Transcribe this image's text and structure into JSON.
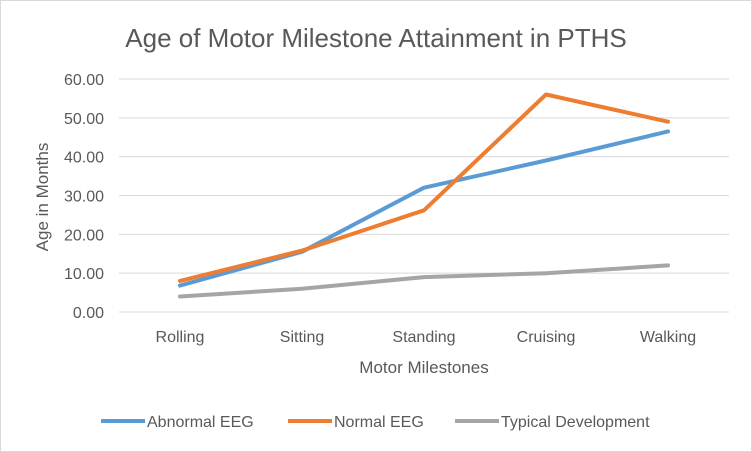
{
  "chart_data": {
    "type": "line",
    "title": "Age of Motor Milestone Attainment in PTHS",
    "xlabel": "Motor Milestones",
    "ylabel": "Age in Months",
    "categories": [
      "Rolling",
      "Sitting",
      "Standing",
      "Cruising",
      "Walking"
    ],
    "ylim": [
      0,
      60
    ],
    "ytick_step": 10,
    "ytick_labels": [
      "0.00",
      "10.00",
      "20.00",
      "30.00",
      "40.00",
      "50.00",
      "60.00"
    ],
    "grid": true,
    "legend_position": "bottom",
    "series": [
      {
        "name": "Abnormal EEG",
        "color": "#5b9bd5",
        "values": [
          6.8,
          15.5,
          32,
          39,
          46.5
        ]
      },
      {
        "name": "Normal EEG",
        "color": "#ed7d31",
        "values": [
          8,
          15.8,
          26.2,
          56,
          49
        ]
      },
      {
        "name": "Typical Development",
        "color": "#a5a5a5",
        "values": [
          4,
          6,
          9,
          10,
          12
        ]
      }
    ]
  }
}
